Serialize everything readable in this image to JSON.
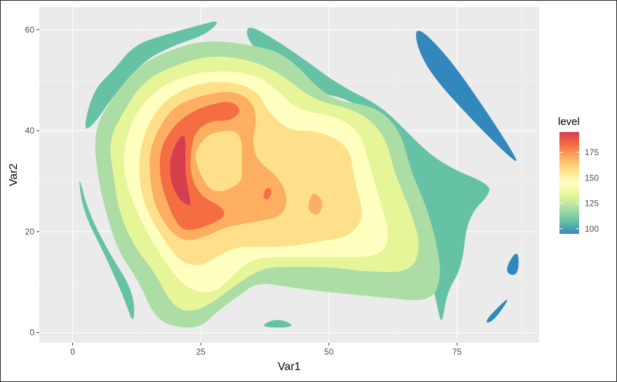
{
  "chart_data": {
    "type": "filled-contour",
    "xlabel": "Var1",
    "ylabel": "Var2",
    "xlim": [
      -6.5,
      91
    ],
    "ylim": [
      -2,
      64.5
    ],
    "x_ticks": [
      0,
      25,
      50,
      75
    ],
    "y_ticks": [
      0,
      20,
      40,
      60
    ],
    "legend": {
      "title": "level",
      "position": "right",
      "range": [
        95,
        195
      ],
      "ticks": [
        100,
        125,
        150,
        175
      ],
      "tick_labels": [
        "100",
        "125",
        "150",
        "175"
      ],
      "colors": [
        "#3288bd",
        "#66c2a5",
        "#abdda4",
        "#e6f598",
        "#ffffbf",
        "#fee08b",
        "#fdae61",
        "#f46d43",
        "#d53e4f"
      ]
    },
    "levels": [
      {
        "level": 100,
        "color": "#3288bd",
        "regions": [
          [
            [
              67,
              61
            ],
            [
              73,
              55
            ],
            [
              80,
              45
            ],
            [
              87,
              34
            ],
            [
              86,
              34
            ],
            [
              78,
              42
            ],
            [
              70,
              51
            ],
            [
              67,
              57
            ]
          ],
          [
            [
              87,
              17
            ],
            [
              87,
              11
            ],
            [
              84,
              12
            ]
          ],
          [
            [
              86,
              8
            ],
            [
              80,
              2
            ],
            [
              82,
              2
            ]
          ]
        ]
      },
      {
        "level": 112,
        "color": "#66c2a5",
        "regions": [
          [
            [
              2,
              40
            ],
            [
              4,
              48
            ],
            [
              8,
              52
            ],
            [
              12,
              57
            ],
            [
              18,
              59
            ],
            [
              25,
              61
            ],
            [
              29,
              62
            ],
            [
              26,
              59
            ],
            [
              20,
              57
            ],
            [
              14,
              54
            ],
            [
              8,
              47
            ],
            [
              4,
              41
            ]
          ],
          [
            [
              34,
              61
            ],
            [
              38,
              59
            ],
            [
              44,
              55
            ],
            [
              52,
              49
            ],
            [
              60,
              45
            ],
            [
              65,
              40
            ],
            [
              70,
              35
            ],
            [
              75,
              32
            ],
            [
              80,
              30
            ],
            [
              82,
              28
            ],
            [
              77,
              23
            ],
            [
              76,
              13
            ],
            [
              73,
              8
            ],
            [
              72,
              1
            ],
            [
              71,
              6
            ],
            [
              69,
              15
            ],
            [
              65,
              28
            ],
            [
              61,
              40
            ],
            [
              55,
              46
            ],
            [
              46,
              48
            ],
            [
              38,
              54
            ],
            [
              34,
              58
            ]
          ],
          [
            [
              1,
              32
            ],
            [
              3,
              24
            ],
            [
              7,
              16
            ],
            [
              12,
              8
            ],
            [
              12,
              1
            ],
            [
              10,
              7
            ],
            [
              6,
              16
            ],
            [
              2,
              24
            ]
          ],
          [
            [
              36,
              1
            ],
            [
              40,
              3
            ],
            [
              44,
              1
            ]
          ]
        ]
      },
      {
        "level": 125,
        "color": "#abdda4",
        "regions": [
          [
            [
              4,
              40
            ],
            [
              8,
              47
            ],
            [
              13,
              53
            ],
            [
              19,
              56
            ],
            [
              26,
              58
            ],
            [
              35,
              57
            ],
            [
              42,
              55
            ],
            [
              50,
              46
            ],
            [
              59,
              45
            ],
            [
              64,
              40
            ],
            [
              66,
              32
            ],
            [
              69,
              25
            ],
            [
              71,
              18
            ],
            [
              72,
              11
            ],
            [
              70,
              6
            ],
            [
              60,
              7
            ],
            [
              50,
              8
            ],
            [
              42,
              9
            ],
            [
              36,
              10
            ],
            [
              32,
              7
            ],
            [
              28,
              4
            ],
            [
              25,
              1
            ],
            [
              20,
              1
            ],
            [
              16,
              3
            ],
            [
              13,
              10
            ],
            [
              9,
              16
            ],
            [
              7,
              22
            ],
            [
              5,
              30
            ]
          ]
        ]
      },
      {
        "level": 137,
        "color": "#e6f598",
        "regions": [
          [
            [
              7,
              38
            ],
            [
              10,
              44
            ],
            [
              14,
              50
            ],
            [
              20,
              53
            ],
            [
              27,
              55
            ],
            [
              35,
              54
            ],
            [
              41,
              51
            ],
            [
              47,
              46
            ],
            [
              56,
              44
            ],
            [
              61,
              39
            ],
            [
              63,
              31
            ],
            [
              66,
              24
            ],
            [
              68,
              17
            ],
            [
              66,
              12
            ],
            [
              58,
              12
            ],
            [
              50,
              13
            ],
            [
              44,
              13
            ],
            [
              38,
              13
            ],
            [
              34,
              11
            ],
            [
              30,
              8
            ],
            [
              26,
              5
            ],
            [
              22,
              4
            ],
            [
              19,
              6
            ],
            [
              16,
              12
            ],
            [
              12,
              17
            ],
            [
              9,
              24
            ],
            [
              8,
              31
            ]
          ]
        ]
      },
      {
        "level": 150,
        "color": "#ffffbf",
        "regions": [
          [
            [
              10,
              37
            ],
            [
              12,
              43
            ],
            [
              16,
              48
            ],
            [
              22,
              51
            ],
            [
              29,
              52
            ],
            [
              36,
              51
            ],
            [
              40,
              48
            ],
            [
              44,
              44
            ],
            [
              51,
              43
            ],
            [
              56,
              40
            ],
            [
              58,
              33
            ],
            [
              60,
              26
            ],
            [
              62,
              19
            ],
            [
              60,
              15
            ],
            [
              52,
              15
            ],
            [
              44,
              15
            ],
            [
              38,
              15
            ],
            [
              34,
              14
            ],
            [
              31,
              11
            ],
            [
              28,
              8
            ],
            [
              24,
              8
            ],
            [
              21,
              10
            ],
            [
              18,
              14
            ],
            [
              15,
              19
            ],
            [
              12,
              25
            ],
            [
              10,
              31
            ]
          ]
        ]
      },
      {
        "level": 162,
        "color": "#fee08b",
        "regions": [
          [
            [
              13,
              36
            ],
            [
              15,
              42
            ],
            [
              18,
              46
            ],
            [
              23,
              49
            ],
            [
              30,
              50
            ],
            [
              36,
              48
            ],
            [
              38,
              44
            ],
            [
              42,
              40
            ],
            [
              48,
              40
            ],
            [
              54,
              37
            ],
            [
              55,
              30
            ],
            [
              57,
              23
            ],
            [
              54,
              19
            ],
            [
              48,
              18
            ],
            [
              42,
              17
            ],
            [
              36,
              17
            ],
            [
              32,
              17
            ],
            [
              28,
              15
            ],
            [
              25,
              13
            ],
            [
              21,
              14
            ],
            [
              18,
              18
            ],
            [
              15,
              23
            ],
            [
              13,
              29
            ]
          ]
        ]
      },
      {
        "level": 175,
        "color": "#fdae61",
        "regions": [
          [
            [
              15,
              36
            ],
            [
              17,
              41
            ],
            [
              20,
              45
            ],
            [
              25,
              47
            ],
            [
              31,
              48
            ],
            [
              35,
              46
            ],
            [
              36,
              42
            ],
            [
              35,
              38
            ],
            [
              36,
              34
            ],
            [
              40,
              31
            ],
            [
              42,
              27
            ],
            [
              41,
              23
            ],
            [
              36,
              22
            ],
            [
              30,
              21
            ],
            [
              26,
              19
            ],
            [
              22,
              18
            ],
            [
              19,
              20
            ],
            [
              16,
              25
            ],
            [
              15,
              31
            ]
          ],
          [
            [
              47,
              28
            ],
            [
              49,
              26
            ],
            [
              48,
              23
            ],
            [
              46,
              24
            ],
            [
              46,
              26
            ]
          ]
        ]
      },
      {
        "level": 187,
        "color": "#f46d43",
        "regions": [
          [
            [
              17,
              36
            ],
            [
              19,
              40
            ],
            [
              22,
              43
            ],
            [
              26,
              45
            ],
            [
              31,
              46
            ],
            [
              33,
              44
            ],
            [
              31,
              42
            ],
            [
              27,
              42
            ],
            [
              24,
              40
            ],
            [
              23,
              36
            ],
            [
              23,
              31
            ],
            [
              25,
              27
            ],
            [
              29,
              25
            ],
            [
              30,
              23
            ],
            [
              26,
              21
            ],
            [
              22,
              20
            ],
            [
              20,
              22
            ],
            [
              18,
              27
            ],
            [
              17,
              31
            ]
          ],
          [
            [
              38,
              29
            ],
            [
              39,
              28
            ],
            [
              38,
              26
            ],
            [
              37,
              27
            ]
          ]
        ]
      },
      {
        "level": 195,
        "color": "#d53e4f",
        "regions": [
          [
            [
              19,
              35
            ],
            [
              21,
              39
            ],
            [
              22,
              39
            ],
            [
              22,
              35
            ],
            [
              22,
              31
            ],
            [
              23,
              26
            ],
            [
              23,
              25
            ],
            [
              21,
              26
            ],
            [
              19,
              30
            ]
          ]
        ]
      },
      {
        "level": 162,
        "color": "#fee08b",
        "regions": [
          [
            [
              24,
              36
            ],
            [
              26,
              39
            ],
            [
              29,
              40
            ],
            [
              32,
              40
            ],
            [
              33,
              38
            ],
            [
              33,
              36
            ],
            [
              33,
              32
            ],
            [
              33,
              30
            ],
            [
              30,
              28
            ],
            [
              27,
              28
            ],
            [
              25,
              31
            ],
            [
              24,
              34
            ]
          ]
        ]
      }
    ]
  }
}
